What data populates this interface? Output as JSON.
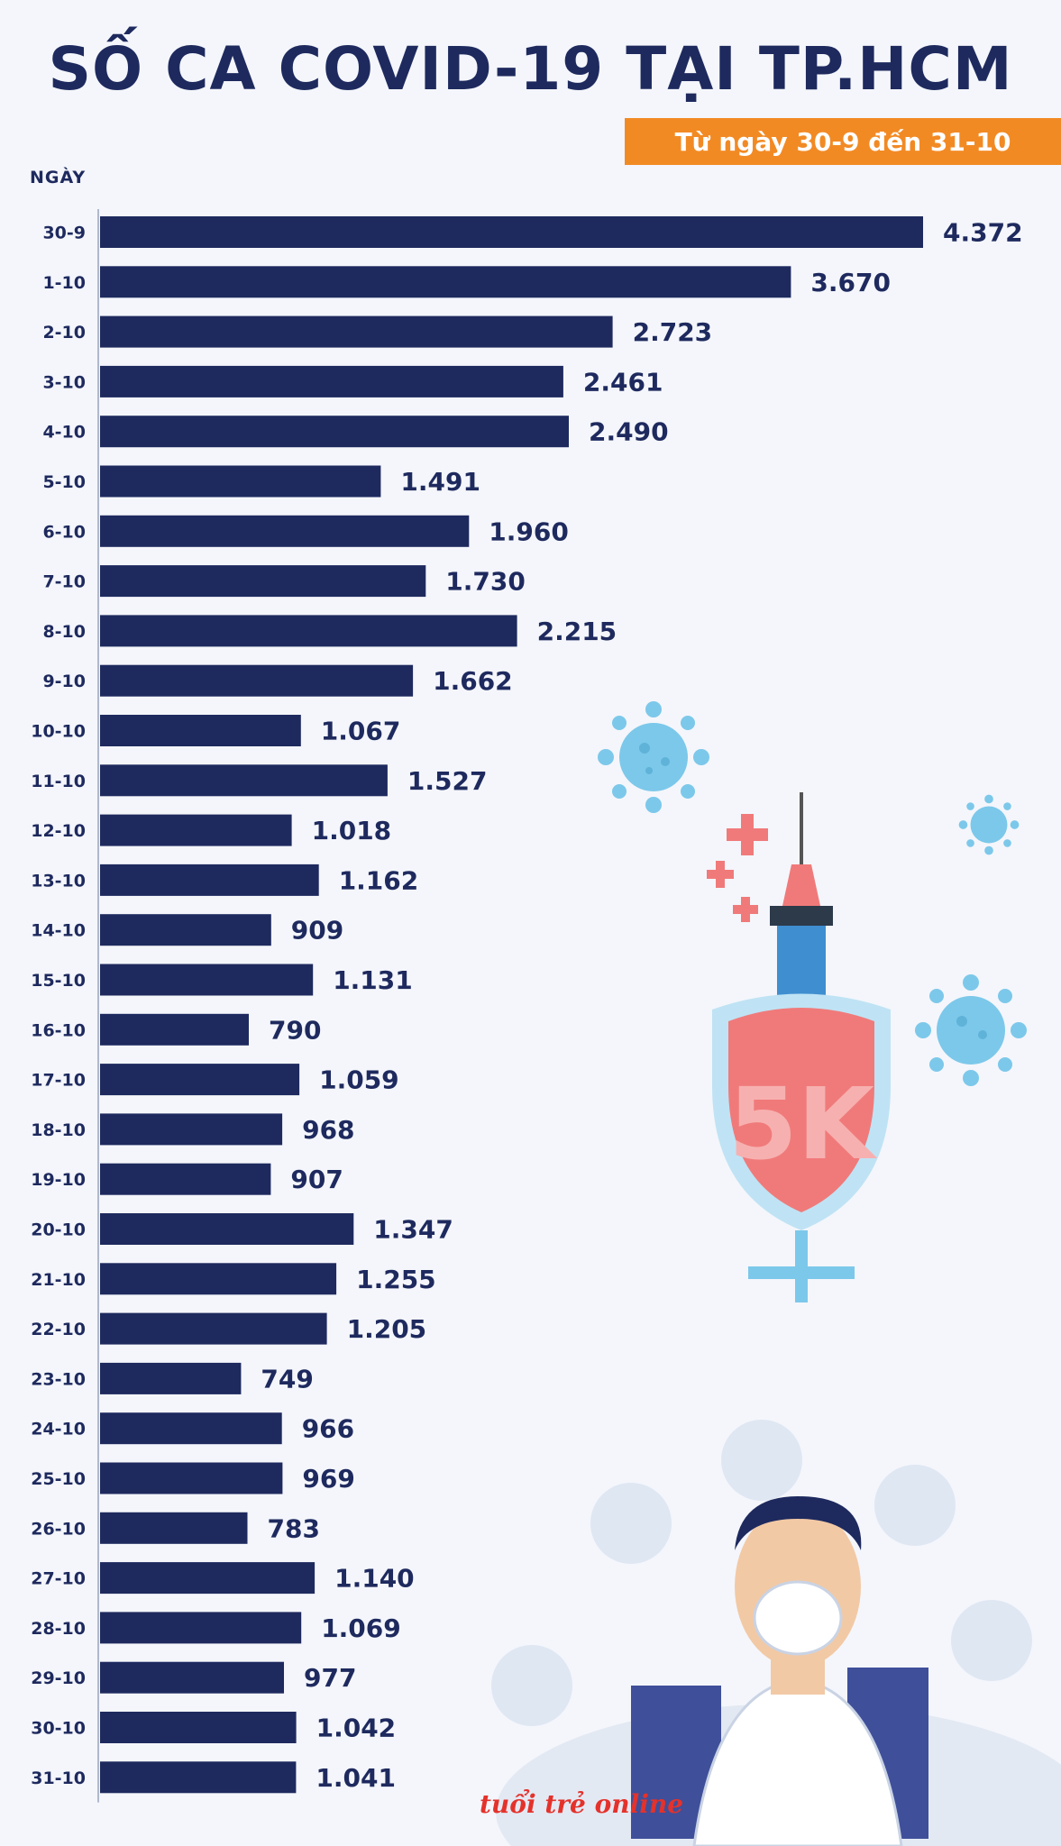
{
  "header": {
    "title": "SỐ CA COVID-19 TẠI TP.HCM",
    "subtitle": "Từ ngày 30-9 đến 31-10"
  },
  "logo": {
    "text": "tuổi trẻ online"
  },
  "illustration": {
    "shield_text": "5K"
  },
  "colors": {
    "bar": "#1e2a5e",
    "accent": "#f28a24",
    "virus": "#7cc8ea",
    "shield": "#f07a7a"
  },
  "chart_data": {
    "type": "bar",
    "orientation": "horizontal",
    "title": "SỐ CA COVID-19 TẠI TP.HCM",
    "subtitle": "Từ ngày 30-9 đến 31-10",
    "ylabel": "NGÀY",
    "xlabel": "",
    "xlim": [
      0,
      4372
    ],
    "categories": [
      "30-9",
      "1-10",
      "2-10",
      "3-10",
      "4-10",
      "5-10",
      "6-10",
      "7-10",
      "8-10",
      "9-10",
      "10-10",
      "11-10",
      "12-10",
      "13-10",
      "14-10",
      "15-10",
      "16-10",
      "17-10",
      "18-10",
      "19-10",
      "20-10",
      "21-10",
      "22-10",
      "23-10",
      "24-10",
      "25-10",
      "26-10",
      "27-10",
      "28-10",
      "29-10",
      "30-10",
      "31-10"
    ],
    "values": [
      4372,
      3670,
      2723,
      2461,
      2490,
      1491,
      1960,
      1730,
      2215,
      1662,
      1067,
      1527,
      1018,
      1162,
      909,
      1131,
      790,
      1059,
      968,
      907,
      1347,
      1255,
      1205,
      749,
      966,
      969,
      783,
      1140,
      1069,
      977,
      1042,
      1041
    ],
    "value_labels": [
      "4.372",
      "3.670",
      "2.723",
      "2.461",
      "2.490",
      "1.491",
      "1.960",
      "1.730",
      "2.215",
      "1.662",
      "1.067",
      "1.527",
      "1.018",
      "1.162",
      "909",
      "1.131",
      "790",
      "1.059",
      "968",
      "907",
      "1.347",
      "1.255",
      "1.205",
      "749",
      "966",
      "969",
      "783",
      "1.140",
      "1.069",
      "977",
      "1.042",
      "1.041"
    ]
  }
}
